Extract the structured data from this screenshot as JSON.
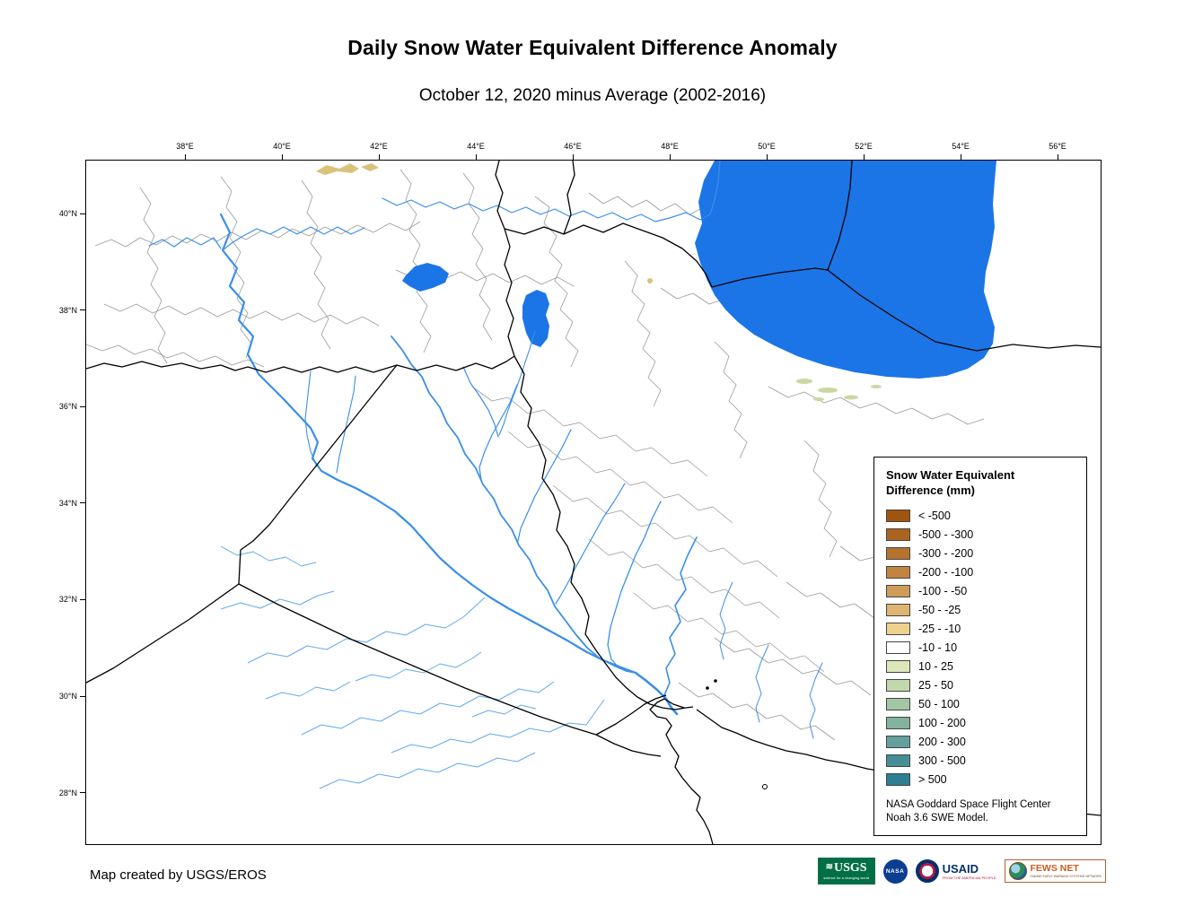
{
  "title": "Daily Snow Water Equivalent Difference Anomaly",
  "subtitle": "October 12, 2020 minus Average (2002-2016)",
  "map": {
    "lon_ticks": [
      "38°E",
      "40°E",
      "42°E",
      "44°E",
      "46°E",
      "48°E",
      "50°E",
      "52°E",
      "54°E",
      "56°E"
    ],
    "lat_ticks": [
      "40°N",
      "38°N",
      "36°N",
      "34°N",
      "32°N",
      "30°N",
      "28°N"
    ]
  },
  "legend": {
    "title_line1": "Snow Water Equivalent",
    "title_line2": "Difference (mm)",
    "entries": [
      {
        "label": "< -500",
        "color": "#a0540f"
      },
      {
        "label": "-500 - -300",
        "color": "#aa6420"
      },
      {
        "label": "-300 - -200",
        "color": "#b5732e"
      },
      {
        "label": "-200 - -100",
        "color": "#c28442"
      },
      {
        "label": "-100 - -50",
        "color": "#d09c59"
      },
      {
        "label": "-50 - -25",
        "color": "#deb572"
      },
      {
        "label": "-25 - -10",
        "color": "#ecd28d"
      },
      {
        "label": "-10 - 10",
        "color": "#ffffff"
      },
      {
        "label": "10 - 25",
        "color": "#dce8bb"
      },
      {
        "label": "25 - 50",
        "color": "#c1d8ad"
      },
      {
        "label": "50 - 100",
        "color": "#a3c6a4"
      },
      {
        "label": "100 - 200",
        "color": "#83b29f"
      },
      {
        "label": "200 - 300",
        "color": "#63a09b"
      },
      {
        "label": "300 - 500",
        "color": "#478f96"
      },
      {
        "label": "> 500",
        "color": "#2d7f91"
      }
    ],
    "note_line1": "NASA Goddard Space Flight Center",
    "note_line2": "Noah 3.6 SWE Model."
  },
  "footer": {
    "credit": "Map created by USGS/EROS"
  },
  "logos": {
    "usgs": {
      "name": "USGS",
      "tagline": "science for a changing world"
    },
    "nasa": {
      "name": "NASA"
    },
    "usaid": {
      "name": "USAID",
      "tagline": "FROM THE AMERICAN PEOPLE"
    },
    "fewsnet": {
      "name": "FEWS NET",
      "tagline": "FAMINE EARLY WARNING SYSTEMS NETWORK"
    }
  },
  "colors": {
    "water": "#1b75e6",
    "river": "#3b8fe8",
    "wadi": "#66a9ef",
    "border": "#000000",
    "watershed": "#9a9a9a",
    "speck_tan": "#d9c27a",
    "speck_green": "#c9d8a2"
  }
}
